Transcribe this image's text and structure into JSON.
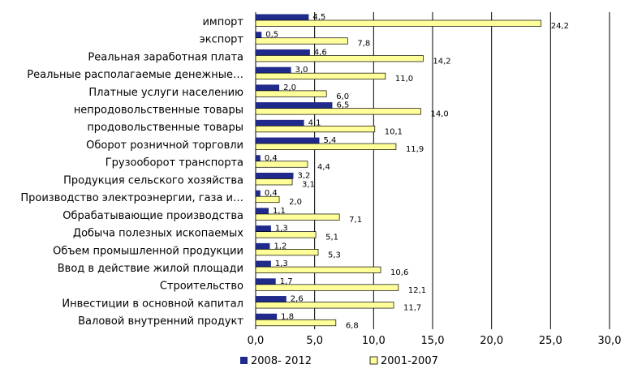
{
  "chart_data": {
    "type": "bar",
    "orientation": "horizontal",
    "title": "",
    "xlabel": "",
    "ylabel": "",
    "xlim": [
      0,
      30
    ],
    "x_ticks": [
      "0,0",
      "5,0",
      "10,0",
      "15,0",
      "20,0",
      "25,0",
      "30,0"
    ],
    "grid": "vertical",
    "legend_position": "bottom",
    "categories": [
      "импорт",
      "экспорт",
      "Реальная заработная плата",
      "Реальные располагаемые денежные…",
      "Платные услуги населению",
      "непродовольственные товары",
      "продовольственные товары",
      "Оборот розничной торговли",
      "Грузооборот транспорта",
      "Продукция сельского хозяйства",
      "Производство электроэнергии, газа и…",
      "Обрабатывающие производства",
      "Добыча полезных ископаемых",
      "Объем промышленной продукции",
      "Ввод в действие жилой площади",
      "Строительство",
      "Инвестиции в основной капитал",
      "Валовой внутренний продукт"
    ],
    "series": [
      {
        "name": "2008- 2012",
        "color": "#1f2a8a",
        "values": [
          4.5,
          0.5,
          4.6,
          3.0,
          2.0,
          6.5,
          4.1,
          5.4,
          0.4,
          3.2,
          0.4,
          1.1,
          1.3,
          1.2,
          1.3,
          1.7,
          2.6,
          1.8
        ],
        "labels": [
          "4,5",
          "0,5",
          "4,6",
          "3,0",
          "2,0",
          "6,5",
          "4,1",
          "5,4",
          "0,4",
          "3,2",
          "0,4",
          "1,1",
          "1,3",
          "1,2",
          "1,3",
          "1,7",
          "2,6",
          "1,8"
        ]
      },
      {
        "name": "2001-2007",
        "color": "#ffff99",
        "values": [
          24.2,
          7.8,
          14.2,
          11.0,
          6.0,
          14.0,
          10.1,
          11.9,
          4.4,
          3.1,
          2.0,
          7.1,
          5.1,
          5.3,
          10.6,
          12.1,
          11.7,
          6.8
        ],
        "labels": [
          "24,2",
          "7,8",
          "14,2",
          "11,0",
          "6,0",
          "14,0",
          "10,1",
          "11,9",
          "4,4",
          "3,1",
          "2,0",
          "7,1",
          "5,1",
          "5,3",
          "10,6",
          "12,1",
          "11,7",
          "6,8"
        ]
      }
    ]
  }
}
